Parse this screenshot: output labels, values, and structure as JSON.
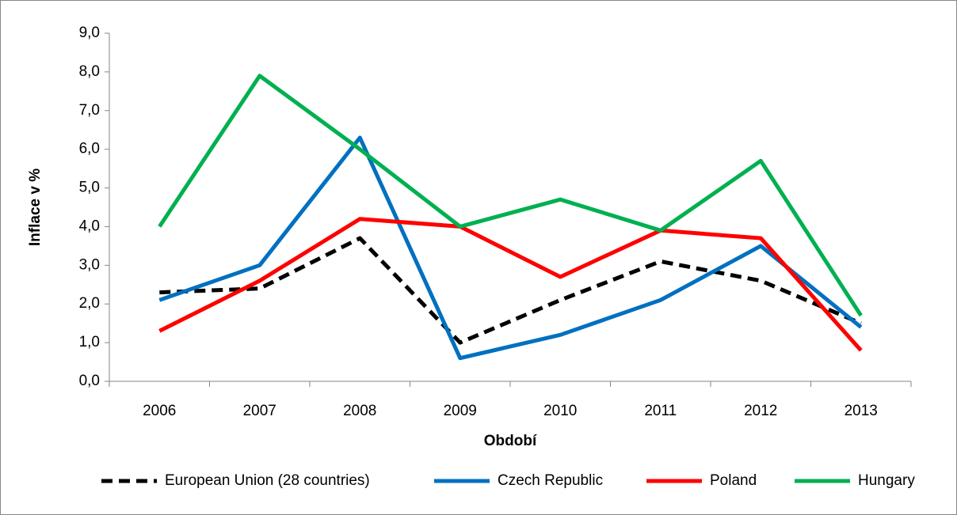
{
  "chart_data": {
    "type": "line",
    "x_label": "Období",
    "y_label": "Inflace v %",
    "categories": [
      "2006",
      "2007",
      "2008",
      "2009",
      "2010",
      "2011",
      "2012",
      "2013"
    ],
    "series": [
      {
        "name": "European Union (28 countries)",
        "color": "#000000",
        "dash": true,
        "values": [
          2.3,
          2.4,
          3.7,
          1.0,
          2.1,
          3.1,
          2.6,
          1.5
        ]
      },
      {
        "name": "Czech Republic",
        "color": "#0070c0",
        "values": [
          2.1,
          3.0,
          6.3,
          0.6,
          1.2,
          2.1,
          3.5,
          1.4
        ]
      },
      {
        "name": "Poland",
        "color": "#ff0000",
        "values": [
          1.3,
          2.6,
          4.2,
          4.0,
          2.7,
          3.9,
          3.7,
          0.8
        ]
      },
      {
        "name": "Hungary",
        "color": "#00b050",
        "values": [
          4.0,
          7.9,
          6.0,
          4.0,
          4.7,
          3.9,
          5.7,
          1.7
        ]
      }
    ],
    "ylim": [
      0,
      9
    ],
    "yticks": [
      {
        "value": 0,
        "label": "0,0"
      },
      {
        "value": 1,
        "label": "1,0"
      },
      {
        "value": 2,
        "label": "2,0"
      },
      {
        "value": 3,
        "label": "3,0"
      },
      {
        "value": 4,
        "label": "4,0"
      },
      {
        "value": 5,
        "label": "5,0"
      },
      {
        "value": 6,
        "label": "6,0"
      },
      {
        "value": 7,
        "label": "7,0"
      },
      {
        "value": 8,
        "label": "8,0"
      },
      {
        "value": 9,
        "label": "9,0"
      }
    ],
    "grid": false,
    "legend": "bottom"
  }
}
